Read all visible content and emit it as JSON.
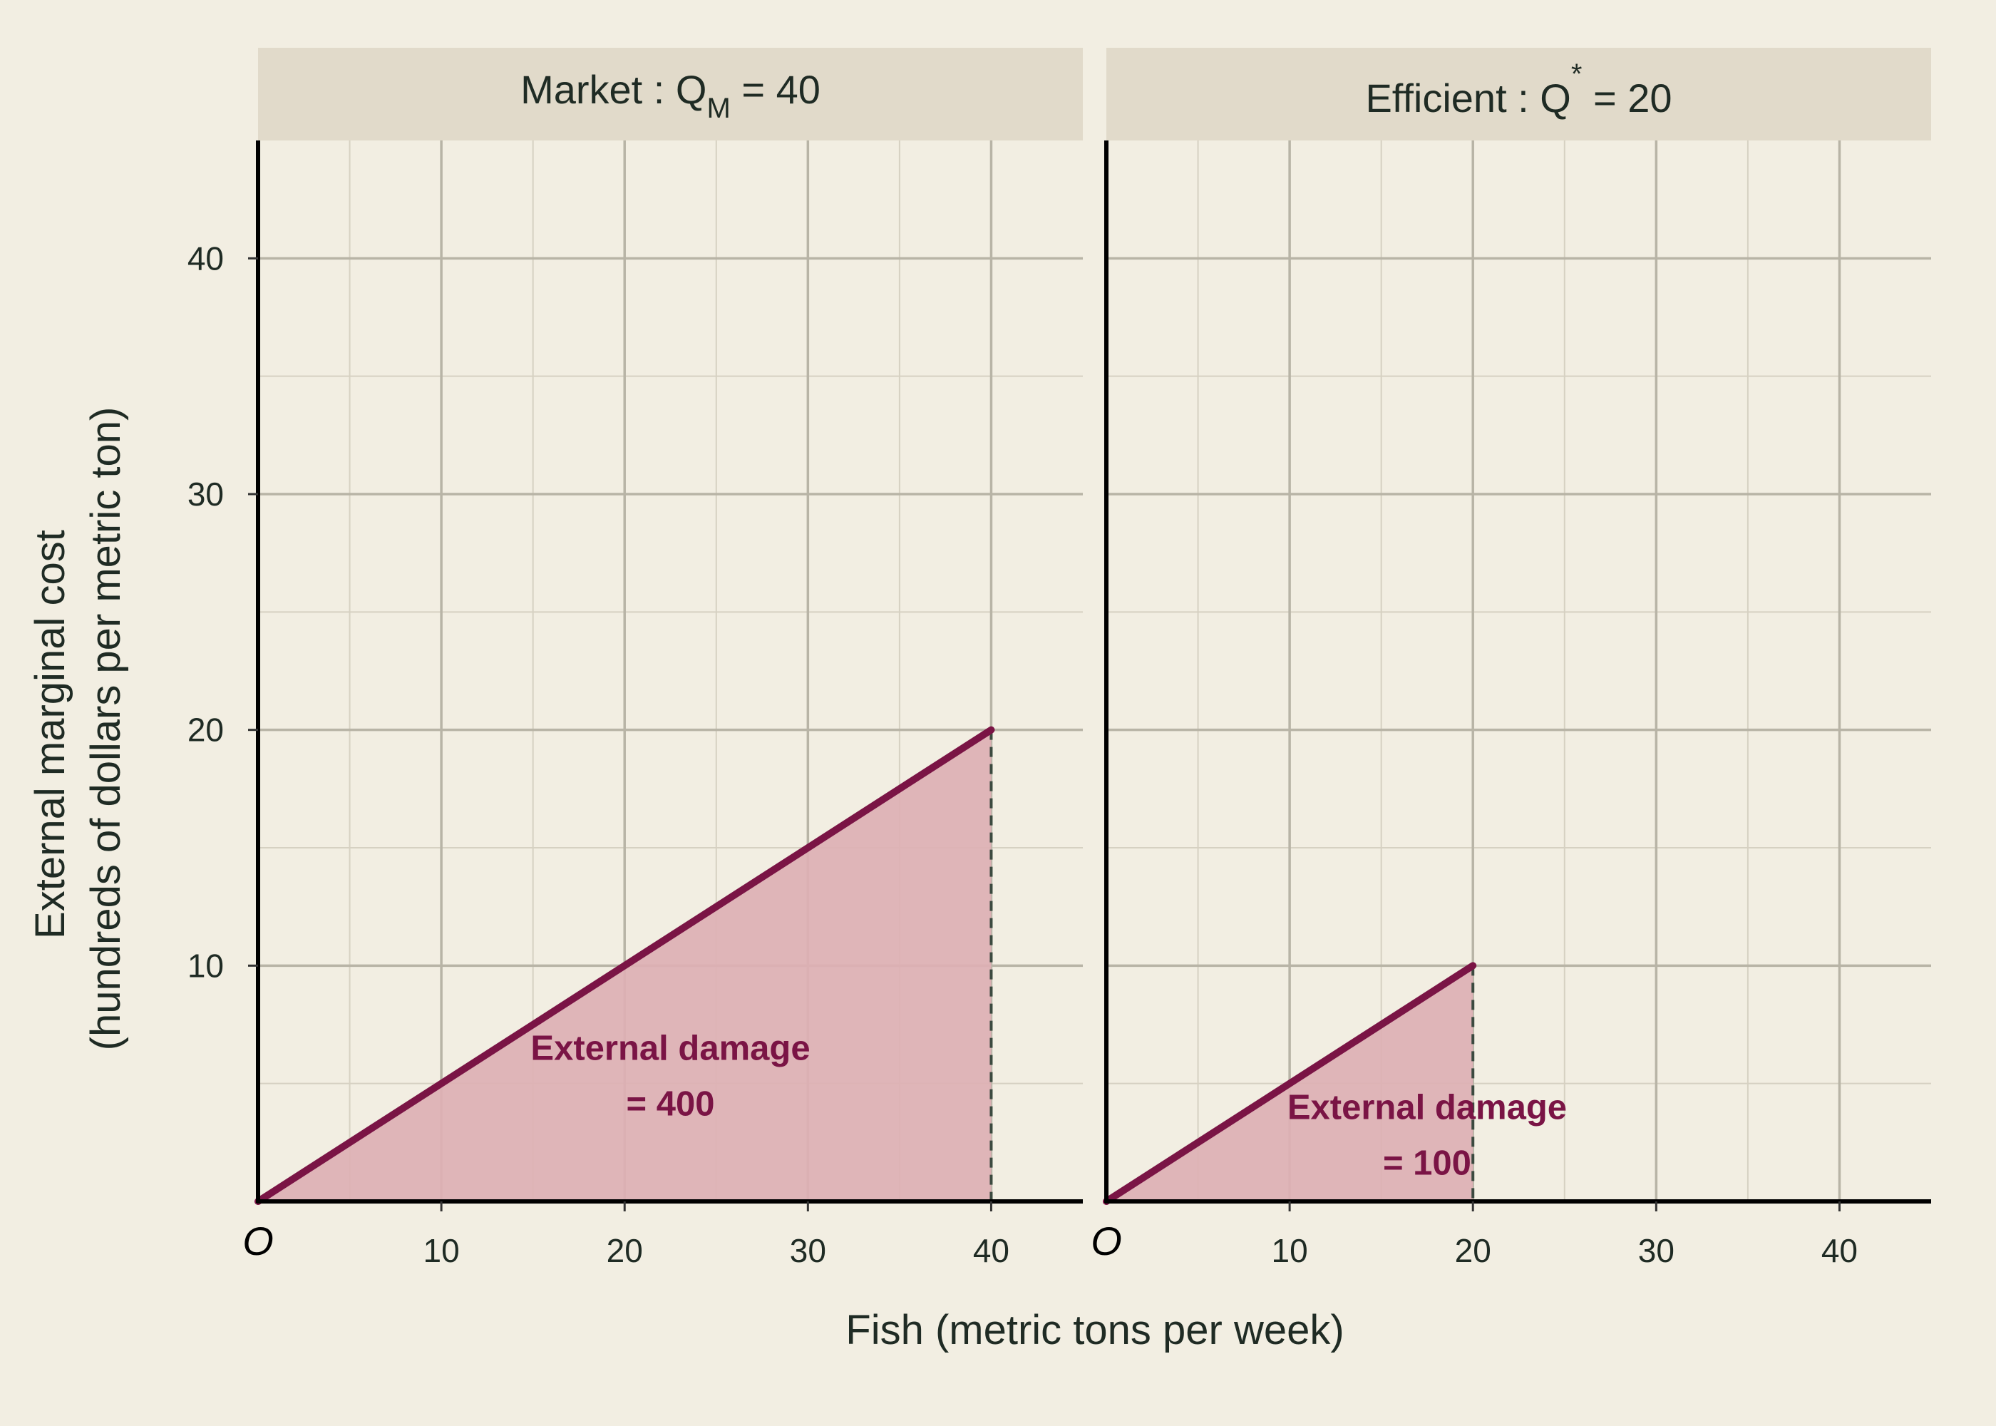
{
  "chart_data": {
    "type": "area",
    "xlabel": "Fish (metric tons per week)",
    "ylabel_lines": [
      "External marginal cost",
      "(hundreds of dollars per metric ton)"
    ],
    "xlim": [
      0,
      45
    ],
    "ylim": [
      0,
      45
    ],
    "x_ticks": [
      10,
      20,
      30,
      40
    ],
    "y_ticks": [
      10,
      20,
      30,
      40
    ],
    "origin_label": "O",
    "grid": true,
    "colors": {
      "background": "#F2EEE2",
      "strip": "#E1DACA",
      "grid_major": "#B8B4A6",
      "grid_minor": "#D6D1C2",
      "line": "#7A1445",
      "fill": "#DDB0B4",
      "dashed": "#3C4A40",
      "annotation": "#7A1445"
    },
    "panels": [
      {
        "strip": {
          "prefix": "Market : Q",
          "sub": "M",
          "sup": "",
          "suffix": " = 40"
        },
        "line": {
          "x": [
            0,
            40
          ],
          "y": [
            0,
            20
          ]
        },
        "shaded_area": {
          "x": [
            0,
            40
          ],
          "y": [
            0,
            20
          ]
        },
        "dashed_vline": {
          "x": 40,
          "y_to": 20
        },
        "annotation": {
          "lines": [
            "External damage",
            "= 400"
          ],
          "x": 22.5,
          "y": 6
        }
      },
      {
        "strip": {
          "prefix": "Efficient : Q",
          "sub": "",
          "sup": "*",
          "suffix": " = 20"
        },
        "line": {
          "x": [
            0,
            20
          ],
          "y": [
            0,
            10
          ]
        },
        "shaded_area": {
          "x": [
            0,
            20
          ],
          "y": [
            0,
            10
          ]
        },
        "dashed_vline": {
          "x": 20,
          "y_to": 10
        },
        "annotation": {
          "lines": [
            "External damage",
            "= 100"
          ],
          "x": 17.5,
          "y": 3.5
        }
      }
    ]
  }
}
